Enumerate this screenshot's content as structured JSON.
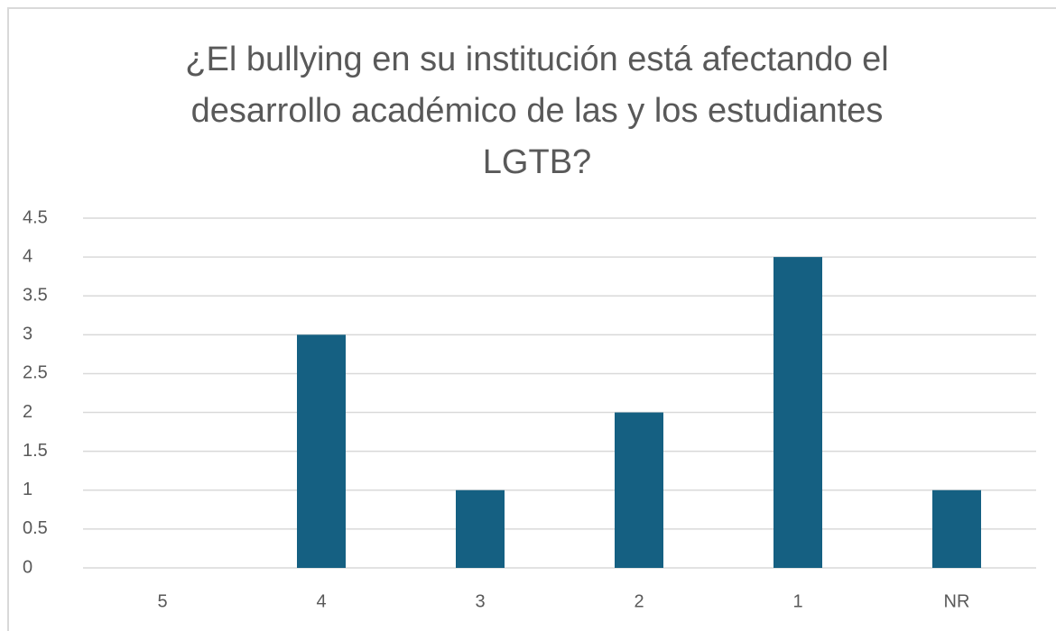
{
  "chart_data": {
    "type": "bar",
    "title": [
      "¿El bullying en su institución está afectando el",
      "desarrollo académico de las y los estudiantes",
      "LGTB?"
    ],
    "categories": [
      "5",
      "4",
      "3",
      "2",
      "1",
      "NR"
    ],
    "values": [
      0,
      3,
      1,
      2,
      4,
      1
    ],
    "color": "#156082",
    "ylim": [
      0,
      4.5
    ],
    "yticks": [
      0,
      0.5,
      1,
      1.5,
      2,
      2.5,
      3,
      3.5,
      4,
      4.5
    ],
    "grid": true
  }
}
